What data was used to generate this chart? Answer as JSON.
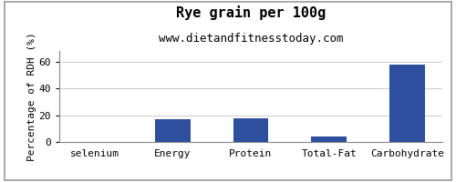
{
  "title": "Rye grain per 100g",
  "subtitle": "www.dietandfitnesstoday.com",
  "categories": [
    "selenium",
    "Energy",
    "Protein",
    "Total-Fat",
    "Carbohydrate"
  ],
  "values": [
    0.3,
    17,
    18,
    4,
    58
  ],
  "bar_color": "#2d4f9e",
  "ylabel": "Percentage of RDH (%)",
  "ylim": [
    0,
    68
  ],
  "yticks": [
    0,
    20,
    40,
    60
  ],
  "background_color": "#ffffff",
  "plot_bg_color": "#ffffff",
  "title_fontsize": 11,
  "subtitle_fontsize": 9,
  "ylabel_fontsize": 8,
  "tick_fontsize": 8,
  "bar_width": 0.45,
  "grid_color": "#cccccc",
  "border_color": "#999999"
}
